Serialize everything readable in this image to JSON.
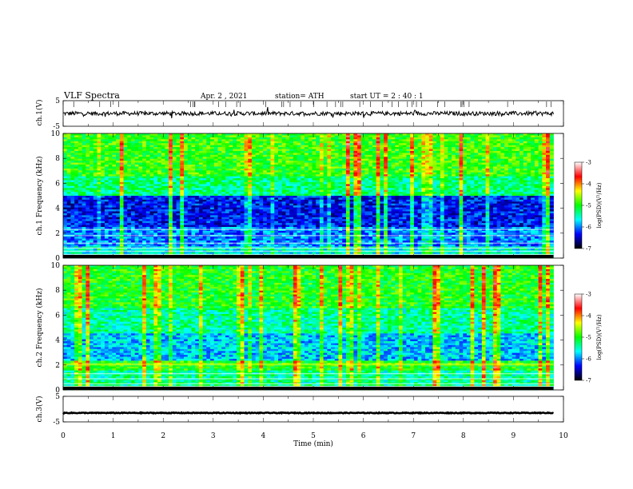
{
  "header": {
    "title": "VLF  Spectra",
    "date": "Apr. 2  , 2021",
    "station": "station= ATH",
    "start_ut": "start  UT  =    2  : 40 : 1"
  },
  "chart_data": [
    {
      "type": "line",
      "id": "ch1-waveform",
      "ylabel": "ch.1(V)",
      "ylim": [
        -5,
        5
      ],
      "yticks": [
        "5",
        "-5"
      ],
      "xlim": [
        0,
        10
      ],
      "data_end": 9.8,
      "level": 0,
      "noise_amplitude": 0.8,
      "series": [
        {
          "color": "#000000"
        }
      ]
    },
    {
      "type": "heatmap",
      "id": "ch1-spectrogram",
      "ylabel": "ch.1 Frequency  (kHz)",
      "ylim": [
        0,
        10
      ],
      "yticks": [
        "10",
        "8",
        "6",
        "4",
        "2",
        "0"
      ],
      "xlim": [
        0,
        10
      ],
      "data_end": 9.8,
      "colorbar": {
        "label": "log(PSD)(V²/Hz)",
        "range": [
          -7,
          -3
        ],
        "ticks": [
          "-3",
          "-4",
          "-5",
          "-6",
          "-7"
        ],
        "colormap": [
          "#000000",
          "#0000ff",
          "#00ffff",
          "#00ff00",
          "#ffff00",
          "#ff0000",
          "#ffffff"
        ]
      }
    },
    {
      "type": "heatmap",
      "id": "ch2-spectrogram",
      "ylabel": "ch.2 Frequency  (kHz)",
      "ylim": [
        0,
        10
      ],
      "yticks": [
        "10",
        "8",
        "6",
        "4",
        "2",
        "0"
      ],
      "xlim": [
        0,
        10
      ],
      "data_end": 9.8,
      "colorbar": {
        "label": "log(PSD)(V²/Hz)",
        "range": [
          -7,
          -3
        ],
        "ticks": [
          "-3",
          "-4",
          "-5",
          "-6",
          "-7"
        ],
        "colormap": [
          "#000000",
          "#0000ff",
          "#00ffff",
          "#00ff00",
          "#ffff00",
          "#ff0000",
          "#ffffff"
        ]
      }
    },
    {
      "type": "line",
      "id": "ch3-waveform",
      "ylabel": "ch.3(V)",
      "ylim": [
        -5,
        5
      ],
      "yticks": [
        "5",
        "-5"
      ],
      "xlim": [
        0,
        10
      ],
      "data_end": 9.8,
      "level": -1.5,
      "noise_amplitude": 0.15,
      "series": [
        {
          "color": "#000000"
        }
      ]
    }
  ],
  "xaxis": {
    "label": "Time  (min)",
    "ticks": [
      "0",
      "1",
      "2",
      "3",
      "4",
      "5",
      "6",
      "7",
      "8",
      "9",
      "10"
    ]
  }
}
